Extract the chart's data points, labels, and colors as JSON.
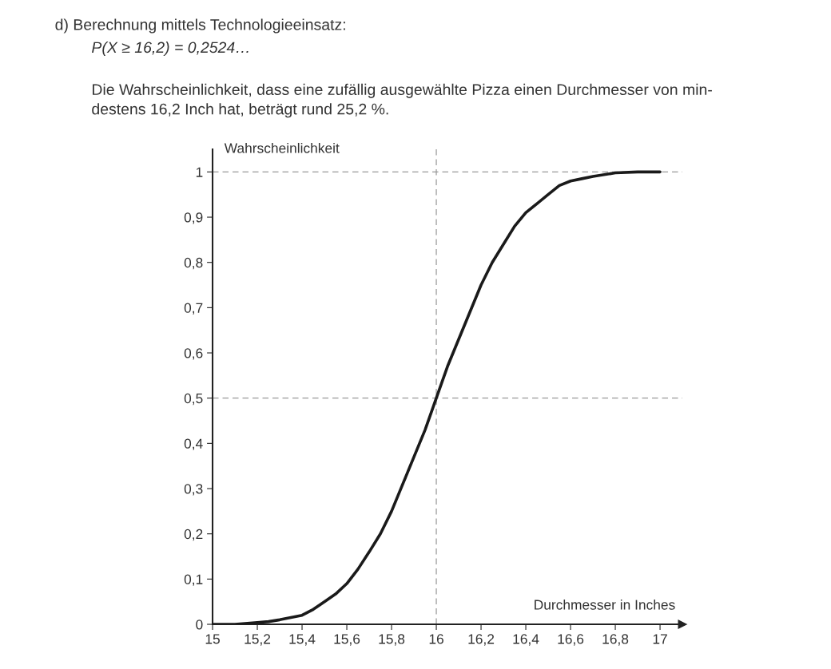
{
  "chart_data": {
    "type": "line",
    "annotations": [
      "d) Berechnung mittels Technologieeinsatz:",
      "P(X ≥ 16,2) = 0,2524…",
      "Die Wahrscheinlichkeit, dass eine zufällig ausgewählte Pizza einen Durchmesser von min-\ndestens 16,2 Inch hat, beträgt rund 25,2 %."
    ],
    "xlabel": "Durchmesser in Inches",
    "ylabel": "Wahrscheinlichkeit",
    "x": [
      15,
      15.1,
      15.2,
      15.25,
      15.3,
      15.35,
      15.4,
      15.45,
      15.5,
      15.55,
      15.6,
      15.65,
      15.7,
      15.75,
      15.8,
      15.85,
      15.9,
      15.95,
      16,
      16.05,
      16.1,
      16.15,
      16.2,
      16.25,
      16.3,
      16.35,
      16.4,
      16.45,
      16.5,
      16.55,
      16.6,
      16.65,
      16.7,
      16.8,
      16.9,
      17
    ],
    "series": [
      {
        "color": "#1a1a1a",
        "values": [
          0,
          0.0,
          0.004,
          0.006,
          0.01,
          0.015,
          0.02,
          0.033,
          0.05,
          0.067,
          0.09,
          0.122,
          0.16,
          0.2,
          0.25,
          0.31,
          0.37,
          0.43,
          0.5,
          0.57,
          0.63,
          0.69,
          0.75,
          0.8,
          0.84,
          0.88,
          0.91,
          0.93,
          0.95,
          0.97,
          0.98,
          0.985,
          0.99,
          0.998,
          1.0,
          1.0
        ]
      }
    ],
    "xlim": [
      15,
      17.1
    ],
    "ylim": [
      0,
      1.05
    ],
    "xticks": [
      15,
      {
        "value": 15.2,
        "label": "15,2"
      },
      {
        "value": 15.4,
        "label": "15,4"
      },
      {
        "value": 15.6,
        "label": "15,6"
      },
      {
        "value": 15.8,
        "label": "15,8"
      },
      16,
      {
        "value": 16.2,
        "label": "16,2"
      },
      {
        "value": 16.4,
        "label": "16,4"
      },
      {
        "value": 16.6,
        "label": "16,6"
      },
      {
        "value": 16.8,
        "label": "16,8"
      },
      17
    ],
    "yticks": [
      0,
      {
        "value": 0.1,
        "label": "0,1"
      },
      {
        "value": 0.2,
        "label": "0,2"
      },
      {
        "value": 0.3,
        "label": "0,3"
      },
      {
        "value": 0.4,
        "label": "0,4"
      },
      {
        "value": 0.5,
        "label": "0,5"
      },
      {
        "value": 0.6,
        "label": "0,6"
      },
      {
        "value": 0.7,
        "label": "0,7"
      },
      {
        "value": 0.8,
        "label": "0,8"
      },
      {
        "value": 0.9,
        "label": "0,9"
      },
      1
    ],
    "ref_lines": [
      {
        "axis": "y",
        "value": 1,
        "color": "#999999",
        "line_style": "dashed"
      },
      {
        "axis": "y",
        "value": 0.5,
        "color": "#999999",
        "line_style": "dashed"
      },
      {
        "axis": "x",
        "value": 16,
        "color": "#999999",
        "line_style": "dashed"
      }
    ],
    "marker": "none",
    "line_style": "solid"
  }
}
